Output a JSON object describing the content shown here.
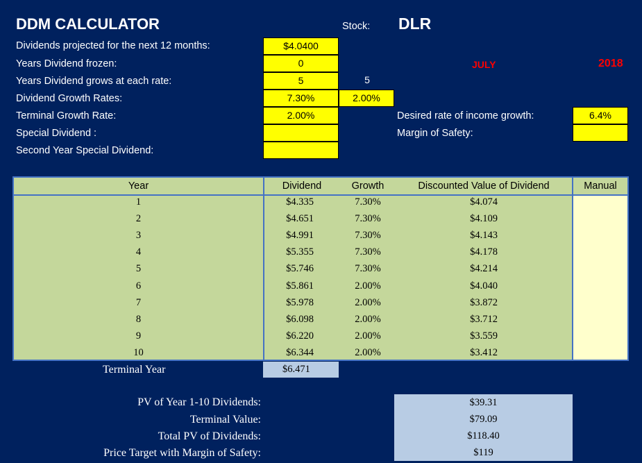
{
  "header": {
    "title": "DDM CALCULATOR",
    "stock_label": "Stock:",
    "stock_value": "DLR",
    "month": "JULY",
    "year": "2018"
  },
  "inputs": {
    "dividends_label": "Dividends projected for the next 12 months:",
    "dividends_value": "$4.0400",
    "years_frozen_label": "Years Dividend frozen:",
    "years_frozen_value": "0",
    "years_grows_label": "Years Dividend grows at each rate:",
    "years_grows_value1": "5",
    "years_grows_value2": "5",
    "growth_rates_label": "Dividend Growth Rates:",
    "growth_rate1": "7.30%",
    "growth_rate2": "2.00%",
    "terminal_growth_label": "Terminal Growth Rate:",
    "terminal_growth_value": "2.00%",
    "special_dividend_label": "Special Dividend :",
    "special_dividend_value": "",
    "second_special_label": "Second Year Special Dividend:",
    "second_special_value": "",
    "desired_income_label": "Desired rate of income growth:",
    "desired_income_value": "6.4%",
    "margin_label": "Margin of Safety:",
    "margin_value": ""
  },
  "table": {
    "headers": {
      "year": "Year",
      "dividend": "Dividend",
      "growth": "Growth",
      "discounted": "Discounted Value of Dividend",
      "manual": "Manual"
    },
    "rows": [
      {
        "year": "1",
        "dividend": "$4.335",
        "growth": "7.30%",
        "discounted": "$4.074"
      },
      {
        "year": "2",
        "dividend": "$4.651",
        "growth": "7.30%",
        "discounted": "$4.109"
      },
      {
        "year": "3",
        "dividend": "$4.991",
        "growth": "7.30%",
        "discounted": "$4.143"
      },
      {
        "year": "4",
        "dividend": "$5.355",
        "growth": "7.30%",
        "discounted": "$4.178"
      },
      {
        "year": "5",
        "dividend": "$5.746",
        "growth": "7.30%",
        "discounted": "$4.214"
      },
      {
        "year": "6",
        "dividend": "$5.861",
        "growth": "2.00%",
        "discounted": "$4.040"
      },
      {
        "year": "7",
        "dividend": "$5.978",
        "growth": "2.00%",
        "discounted": "$3.872"
      },
      {
        "year": "8",
        "dividend": "$6.098",
        "growth": "2.00%",
        "discounted": "$3.712"
      },
      {
        "year": "9",
        "dividend": "$6.220",
        "growth": "2.00%",
        "discounted": "$3.559"
      },
      {
        "year": "10",
        "dividend": "$6.344",
        "growth": "2.00%",
        "discounted": "$3.412"
      }
    ],
    "terminal_label": "Terminal Year",
    "terminal_value": "$6.471"
  },
  "summary": {
    "pv_label": "PV of Year 1-10 Dividends:",
    "pv_value": "$39.31",
    "terminal_label": "Terminal Value:",
    "terminal_value": "$79.09",
    "total_label": "Total PV of Dividends:",
    "total_value": "$118.40",
    "target_label": "Price Target with Margin of Safety:",
    "target_value": "$119"
  },
  "colors": {
    "background": "#00215e",
    "input_yellow": "#ffff00",
    "table_green": "#c4d79b",
    "table_border": "#4472c4",
    "manual_fill": "#ffffcc",
    "summary_fill": "#b8cce4",
    "date_red": "#ff0000"
  }
}
